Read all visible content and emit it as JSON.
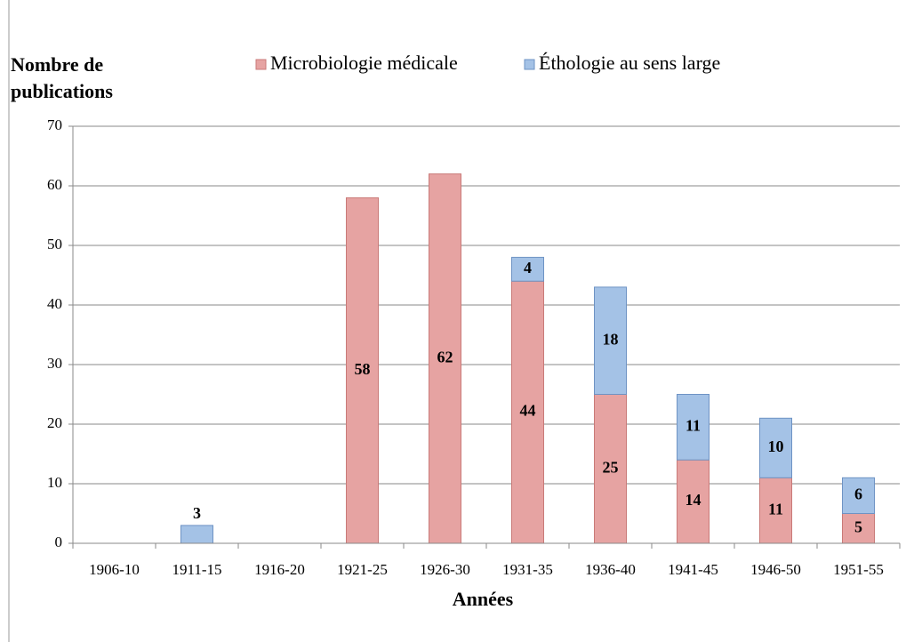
{
  "chart_data": {
    "type": "stacked_bar",
    "y_label": "Nombre de publications",
    "x_label": "Années",
    "categories": [
      "1906-10",
      "1911-15",
      "1916-20",
      "1921-25",
      "1926-30",
      "1931-35",
      "1936-40",
      "1941-45",
      "1946-50",
      "1951-55"
    ],
    "series": [
      {
        "name": "Microbiologie médicale",
        "color": "#e6a3a2",
        "stroke": "#c97a78",
        "values": [
          0,
          0,
          0,
          58,
          62,
          44,
          25,
          14,
          11,
          5
        ]
      },
      {
        "name": "Éthologie au sens large",
        "color": "#a4c2e6",
        "stroke": "#6e93c4",
        "values": [
          0,
          3,
          0,
          0,
          0,
          4,
          18,
          11,
          10,
          6
        ]
      }
    ],
    "ylim": [
      0,
      70
    ],
    "yticks": [
      0,
      10,
      20,
      30,
      40,
      50,
      60,
      70
    ],
    "grid": true,
    "legend": "top"
  }
}
